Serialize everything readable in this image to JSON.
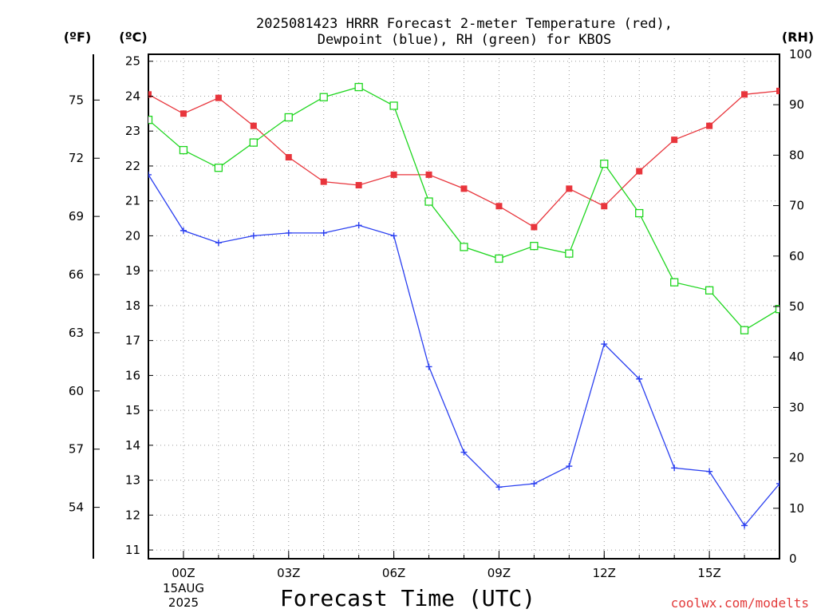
{
  "chart_data": {
    "type": "line",
    "title_lines": [
      "2025081423 HRRR Forecast 2-meter Temperature (red),",
      "Dewpoint (blue), RH (green) for KBOS"
    ],
    "xlabel": "Forecast Time (UTC)",
    "credit": "coolwx.com/modelts",
    "units": {
      "f": "(ºF)",
      "c": "(ºC)",
      "rh": "(RH)"
    },
    "x": [
      -1,
      0,
      1,
      2,
      3,
      4,
      5,
      6,
      7,
      8,
      9,
      10,
      11,
      12,
      13,
      14,
      15,
      16,
      17
    ],
    "xlim": [
      -1,
      17
    ],
    "x_ticks": [
      {
        "x": 0,
        "label": "00Z"
      },
      {
        "x": 3,
        "label": "03Z"
      },
      {
        "x": 6,
        "label": "06Z"
      },
      {
        "x": 9,
        "label": "09Z"
      },
      {
        "x": 12,
        "label": "12Z"
      },
      {
        "x": 15,
        "label": "15Z"
      }
    ],
    "date_lines": [
      "15AUG",
      "2025"
    ],
    "ylim_c": [
      10.75,
      25.2
    ],
    "yticks_c": [
      "11",
      "12",
      "13",
      "14",
      "15",
      "16",
      "17",
      "18",
      "19",
      "20",
      "21",
      "22",
      "23",
      "24",
      "25"
    ],
    "yticks_f": [
      "54",
      "57",
      "60",
      "63",
      "66",
      "69",
      "72",
      "75"
    ],
    "ylim_rh": [
      0,
      100
    ],
    "yticks_rh": [
      "0",
      "10",
      "20",
      "30",
      "40",
      "50",
      "60",
      "70",
      "80",
      "90",
      "100"
    ],
    "grid": true,
    "series": [
      {
        "name": "Temperature",
        "axis": "c",
        "color": "#e8353c",
        "marker": "filled-square",
        "values": [
          24.05,
          23.5,
          23.95,
          23.15,
          22.25,
          21.55,
          21.45,
          21.75,
          21.75,
          21.35,
          20.85,
          20.25,
          21.35,
          20.85,
          21.85,
          22.75,
          23.15,
          24.05,
          24.15
        ]
      },
      {
        "name": "Dewpoint",
        "axis": "c",
        "color": "#2a3ff0",
        "marker": "plus",
        "values": [
          21.75,
          20.15,
          19.8,
          20.0,
          20.08,
          20.08,
          20.3,
          20.0,
          16.25,
          13.8,
          12.8,
          12.9,
          13.4,
          16.9,
          15.9,
          13.35,
          13.25,
          11.7,
          12.9
        ]
      },
      {
        "name": "RH",
        "axis": "rh",
        "color": "#1fd61f",
        "marker": "open-square",
        "values": [
          87.0,
          81.0,
          77.5,
          82.5,
          87.5,
          91.5,
          93.5,
          89.8,
          70.8,
          61.8,
          59.5,
          62.0,
          60.5,
          78.3,
          68.5,
          54.8,
          53.2,
          45.3,
          49.5
        ]
      }
    ]
  }
}
